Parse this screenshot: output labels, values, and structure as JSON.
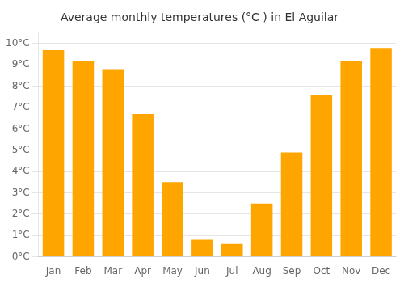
{
  "chart_data": {
    "type": "bar",
    "title": "Average monthly temperatures (°C ) in El Aguilar",
    "categories": [
      "Jan",
      "Feb",
      "Mar",
      "Apr",
      "May",
      "Jun",
      "Jul",
      "Aug",
      "Sep",
      "Oct",
      "Nov",
      "Dec"
    ],
    "values": [
      9.7,
      9.2,
      8.8,
      6.7,
      3.5,
      0.8,
      0.6,
      2.5,
      4.9,
      7.6,
      9.2,
      9.8
    ],
    "color": "#FFA500",
    "ylim": [
      0,
      10.5
    ],
    "yticks": [
      {
        "value": 0,
        "label": "0°C"
      },
      {
        "value": 1,
        "label": "1°C"
      },
      {
        "value": 2,
        "label": "2°C"
      },
      {
        "value": 3,
        "label": "3°C"
      },
      {
        "value": 4,
        "label": "4°C"
      },
      {
        "value": 5,
        "label": "5°C"
      },
      {
        "value": 6,
        "label": "6°C"
      },
      {
        "value": 7,
        "label": "7°C"
      },
      {
        "value": 8,
        "label": "8°C"
      },
      {
        "value": 9,
        "label": "9°C"
      },
      {
        "value": 10,
        "label": "10°C"
      }
    ],
    "grid": true
  }
}
